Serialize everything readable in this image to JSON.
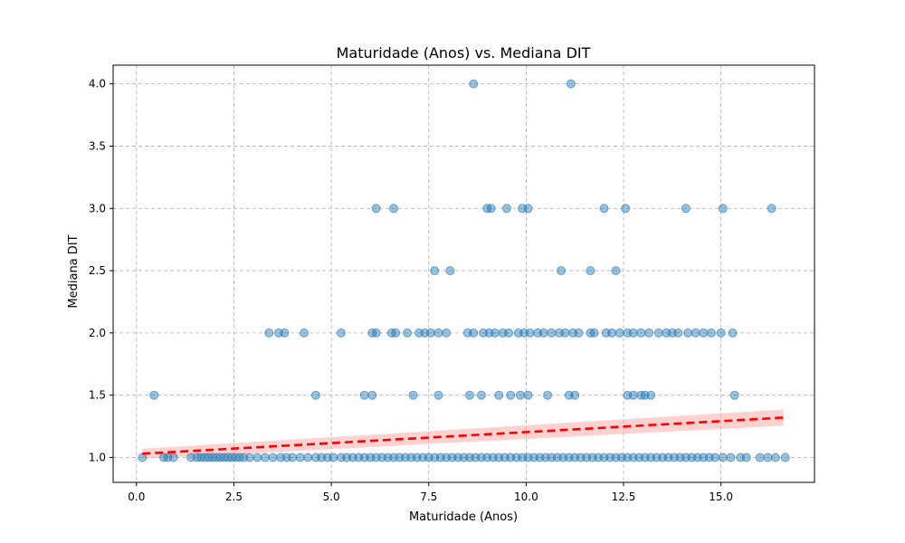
{
  "chart_data": {
    "type": "scatter",
    "title": "Maturidade (Anos) vs. Mediana DIT",
    "xlabel": "Maturidade (Anos)",
    "ylabel": "Mediana DIT",
    "xlim": [
      -0.6,
      17.4
    ],
    "ylim": [
      0.8,
      4.15
    ],
    "xticks": [
      0.0,
      2.5,
      5.0,
      7.5,
      10.0,
      12.5,
      15.0
    ],
    "xtick_labels": [
      "0.0",
      "2.5",
      "5.0",
      "7.5",
      "10.0",
      "12.5",
      "15.0"
    ],
    "yticks": [
      1.0,
      1.5,
      2.0,
      2.5,
      3.0,
      3.5,
      4.0
    ],
    "ytick_labels": [
      "1.0",
      "1.5",
      "2.0",
      "2.5",
      "3.0",
      "3.5",
      "4.0"
    ],
    "grid": true,
    "colors": {
      "points": "#1f77b4",
      "trend": "#ff0000",
      "band": "#ff9999"
    },
    "points": {
      "y1": [
        0.15,
        0.7,
        0.8,
        0.95,
        1.4,
        1.55,
        1.65,
        1.75,
        1.85,
        1.95,
        2.05,
        2.15,
        2.25,
        2.35,
        2.45,
        2.55,
        2.65,
        2.75,
        2.9,
        3.1,
        3.3,
        3.5,
        3.7,
        3.85,
        4.0,
        4.2,
        4.4,
        4.6,
        4.75,
        4.9,
        5.05,
        5.25,
        5.4,
        5.55,
        5.7,
        5.85,
        6.0,
        6.15,
        6.3,
        6.45,
        6.6,
        6.75,
        6.9,
        7.05,
        7.2,
        7.35,
        7.5,
        7.65,
        7.8,
        7.95,
        8.1,
        8.25,
        8.4,
        8.55,
        8.7,
        8.85,
        9.0,
        9.15,
        9.3,
        9.45,
        9.6,
        9.75,
        9.9,
        10.05,
        10.2,
        10.35,
        10.5,
        10.65,
        10.8,
        10.95,
        11.1,
        11.25,
        11.4,
        11.55,
        11.7,
        11.85,
        12.0,
        12.15,
        12.3,
        12.45,
        12.6,
        12.75,
        12.9,
        13.05,
        13.2,
        13.35,
        13.5,
        13.65,
        13.8,
        13.95,
        14.1,
        14.25,
        14.4,
        14.55,
        14.7,
        14.85,
        15.05,
        15.25,
        15.5,
        15.65,
        16.0,
        16.2,
        16.4,
        16.65
      ],
      "y1_5": [
        0.45,
        4.6,
        5.85,
        6.05,
        7.1,
        7.75,
        8.55,
        8.85,
        9.3,
        9.6,
        9.85,
        10.05,
        10.55,
        11.1,
        11.25,
        12.6,
        12.75,
        12.95,
        13.05,
        13.2,
        15.35
      ],
      "y2": [
        3.4,
        3.65,
        3.8,
        4.3,
        5.25,
        6.05,
        6.15,
        6.55,
        6.65,
        6.95,
        7.25,
        7.4,
        7.55,
        7.75,
        7.95,
        8.5,
        8.65,
        8.9,
        9.05,
        9.2,
        9.4,
        9.55,
        9.8,
        9.95,
        10.1,
        10.3,
        10.45,
        10.65,
        10.85,
        11.0,
        11.2,
        11.35,
        11.65,
        11.75,
        12.05,
        12.2,
        12.4,
        12.6,
        12.75,
        12.95,
        13.15,
        13.4,
        13.6,
        13.75,
        13.9,
        14.15,
        14.35,
        14.55,
        14.75,
        15.0,
        15.3
      ],
      "y2_5": [
        7.65,
        8.05,
        10.9,
        11.65,
        12.3
      ],
      "y3": [
        6.15,
        6.6,
        9.0,
        9.1,
        9.5,
        9.9,
        10.05,
        12.0,
        12.55,
        14.1,
        15.05,
        16.3
      ],
      "y4": [
        8.65,
        11.15
      ]
    },
    "trend": {
      "x": [
        0.15,
        16.6
      ],
      "y": [
        1.03,
        1.32
      ],
      "band": [
        0.04,
        0.065
      ]
    }
  }
}
